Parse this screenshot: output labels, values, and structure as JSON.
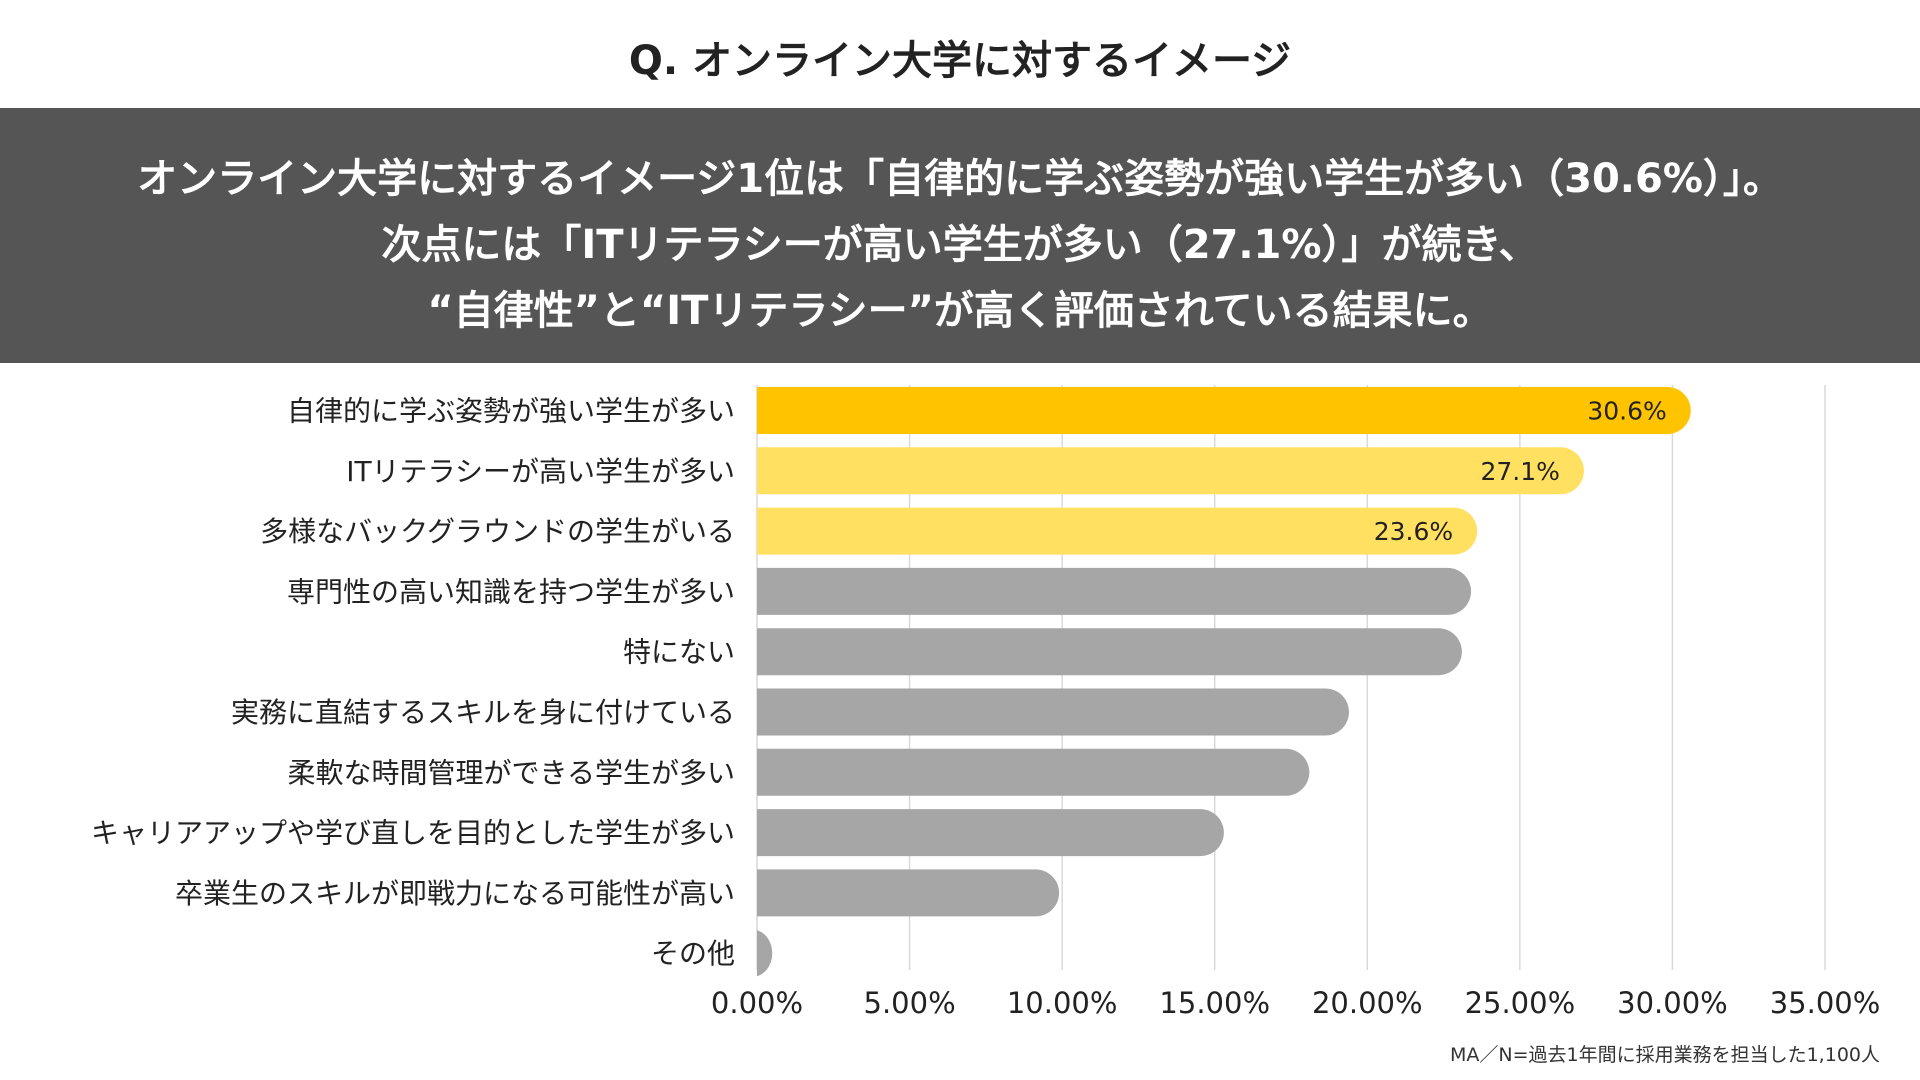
{
  "title": "Q. オンライン大学に対するイメージ",
  "banner": {
    "line1": "オンライン大学に対するイメージ1位は「自律的に学ぶ姿勢が強い学生が多い（30.6%）」。",
    "line2": "次点には「ITリテラシーが高い学生が多い（27.1%）」が続き、",
    "line3": "“自律性”と“ITリテラシー”が高く評価されている結果に。"
  },
  "footnote": "MA／N=過去1年間に採用業務を担当した1,100人",
  "colors": {
    "banner": "#555555",
    "top1": "#FFC300",
    "top2": "#FFE060",
    "other": "#A6A6A6",
    "grid": "#D9D9D9"
  },
  "chart_data": {
    "type": "bar",
    "orientation": "horizontal",
    "categories": [
      "自律的に学ぶ姿勢が強い学生が多い",
      "ITリテラシーが高い学生が多い",
      "多様なバックグラウンドの学生がいる",
      "専門性の高い知識を持つ学生が多い",
      "特にない",
      "実務に直結するスキルを身に付けている",
      "柔軟な時間管理ができる学生が多い",
      "キャリアアップや学び直しを目的とした学生が多い",
      "卒業生のスキルが即戦力になる可能性が高い",
      "その他"
    ],
    "values": [
      30.6,
      27.1,
      23.6,
      23.4,
      23.1,
      19.4,
      18.1,
      15.3,
      9.9,
      0.5
    ],
    "value_labels": [
      "30.6%",
      "27.1%",
      "23.6%",
      "",
      "",
      "",
      "",
      "",
      "",
      ""
    ],
    "highlight": [
      "top1",
      "top2",
      "top2",
      "other",
      "other",
      "other",
      "other",
      "other",
      "other",
      "other"
    ],
    "xlim": [
      0,
      35
    ],
    "xticks": [
      0,
      5,
      10,
      15,
      20,
      25,
      30,
      35
    ],
    "xtick_labels": [
      "0.00%",
      "5.00%",
      "10.00%",
      "15.00%",
      "20.00%",
      "25.00%",
      "30.00%",
      "35.00%"
    ],
    "grid": "vertical"
  }
}
